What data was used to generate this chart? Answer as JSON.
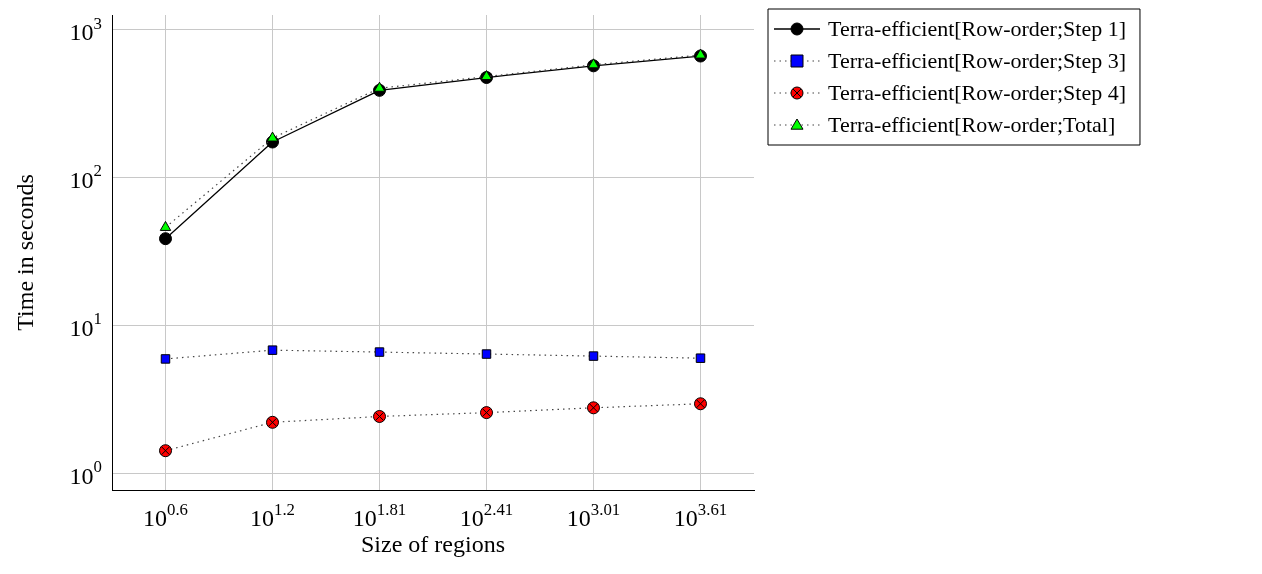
{
  "chart_data": {
    "type": "line",
    "xlabel": "Size of regions",
    "ylabel": "Time in seconds",
    "log": "y",
    "grid": true,
    "legend": "top right",
    "categories": [
      "10$^{0.6}$",
      "10$^{1.2}$",
      "10$^{1.81}$",
      "10$^{2.41}$",
      "10$^{3.01}$",
      "10$^{3.61}$"
    ],
    "ylim": [
      0.77,
      1258
    ],
    "yticks": [
      {
        "value": 1,
        "label": "10$^{0}$"
      },
      {
        "value": 10,
        "label": "10$^{1}$"
      },
      {
        "value": 100,
        "label": "10$^{2}$"
      },
      {
        "value": 1000,
        "label": "10$^{3}$"
      }
    ],
    "series": [
      {
        "name": "Terra-efficient[Row-order;Step 1]",
        "color": "#000000",
        "marker": "circle",
        "line_style": "solid",
        "values": [
          38.6,
          174,
          389,
          475,
          570,
          664
        ]
      },
      {
        "name": "Terra-efficient[Row-order;Step 3]",
        "color": "#0000ff",
        "marker": "square",
        "line_style": "dotted",
        "values": [
          5.93,
          6.8,
          6.6,
          6.4,
          6.2,
          6.0
        ]
      },
      {
        "name": "Terra-efficient[Row-order;Step 4]",
        "color": "#ff0000",
        "marker": "circle",
        "line_style": "dotted",
        "values": [
          1.42,
          2.21,
          2.42,
          2.57,
          2.77,
          2.95
        ]
      },
      {
        "name": "Terra-efficient[Row-order;Total]",
        "color": "#00ff00",
        "marker": "triangle",
        "line_style": "dotted",
        "values": [
          46,
          185,
          402,
          482,
          579,
          674
        ]
      }
    ]
  }
}
